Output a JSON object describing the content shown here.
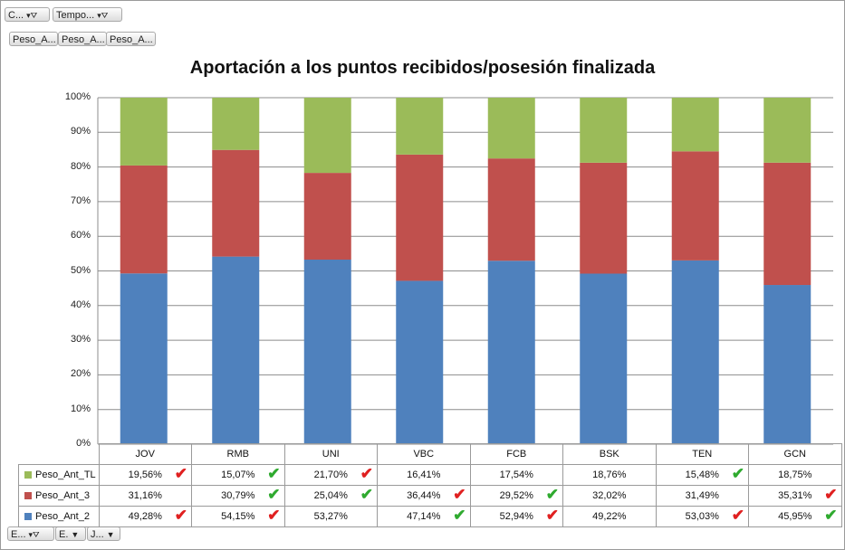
{
  "filters": {
    "top": [
      {
        "label": "C...",
        "icon": "filter-icon"
      },
      {
        "label": "Tempo...",
        "icon": "filter-icon"
      }
    ],
    "fields": [
      "Peso_A...",
      "Peso_A...",
      "Peso_A..."
    ],
    "bottom": [
      {
        "label": "E...",
        "icon": "filter-icon"
      },
      {
        "label": "E.",
        "icon": "dropdown-icon"
      },
      {
        "label": "J...",
        "icon": "dropdown-icon"
      }
    ]
  },
  "chart_data": {
    "type": "bar",
    "stacked": "percent",
    "title": "Aportación a los puntos recibidos/posesión finalizada",
    "categories": [
      "JOV",
      "RMB",
      "UNI",
      "VBC",
      "FCB",
      "BSK",
      "TEN",
      "GCN"
    ],
    "y_ticks": [
      "0%",
      "10%",
      "20%",
      "30%",
      "40%",
      "50%",
      "60%",
      "70%",
      "80%",
      "90%",
      "100%"
    ],
    "ylim": [
      0,
      100
    ],
    "grid": true,
    "series": [
      {
        "name": "Peso_Ant_2",
        "color": "#4f81bd",
        "values": [
          49.28,
          54.15,
          53.27,
          47.14,
          52.94,
          49.22,
          53.03,
          45.95
        ],
        "labels": [
          "49,28%",
          "54,15%",
          "53,27%",
          "47,14%",
          "52,94%",
          "49,22%",
          "53,03%",
          "45,95%"
        ],
        "marks": [
          "red",
          "red",
          "",
          "green",
          "red",
          "",
          "red",
          "green"
        ]
      },
      {
        "name": "Peso_Ant_3",
        "color": "#c0504d",
        "values": [
          31.16,
          30.79,
          25.04,
          36.44,
          29.52,
          32.02,
          31.49,
          35.31
        ],
        "labels": [
          "31,16%",
          "30,79%",
          "25,04%",
          "36,44%",
          "29,52%",
          "32,02%",
          "31,49%",
          "35,31%"
        ],
        "marks": [
          "",
          "green",
          "green",
          "red",
          "green",
          "",
          "",
          "red"
        ]
      },
      {
        "name": "Peso_Ant_TL",
        "color": "#9bbb59",
        "values": [
          19.56,
          15.07,
          21.7,
          16.41,
          17.54,
          18.76,
          15.48,
          18.75
        ],
        "labels": [
          "19,56%",
          "15,07%",
          "21,70%",
          "16,41%",
          "17,54%",
          "18,76%",
          "15,48%",
          "18,75%"
        ],
        "marks": [
          "red",
          "green",
          "red",
          "",
          "",
          "",
          "green",
          ""
        ]
      }
    ],
    "table_row_order": [
      "Peso_Ant_TL",
      "Peso_Ant_3",
      "Peso_Ant_2"
    ]
  }
}
